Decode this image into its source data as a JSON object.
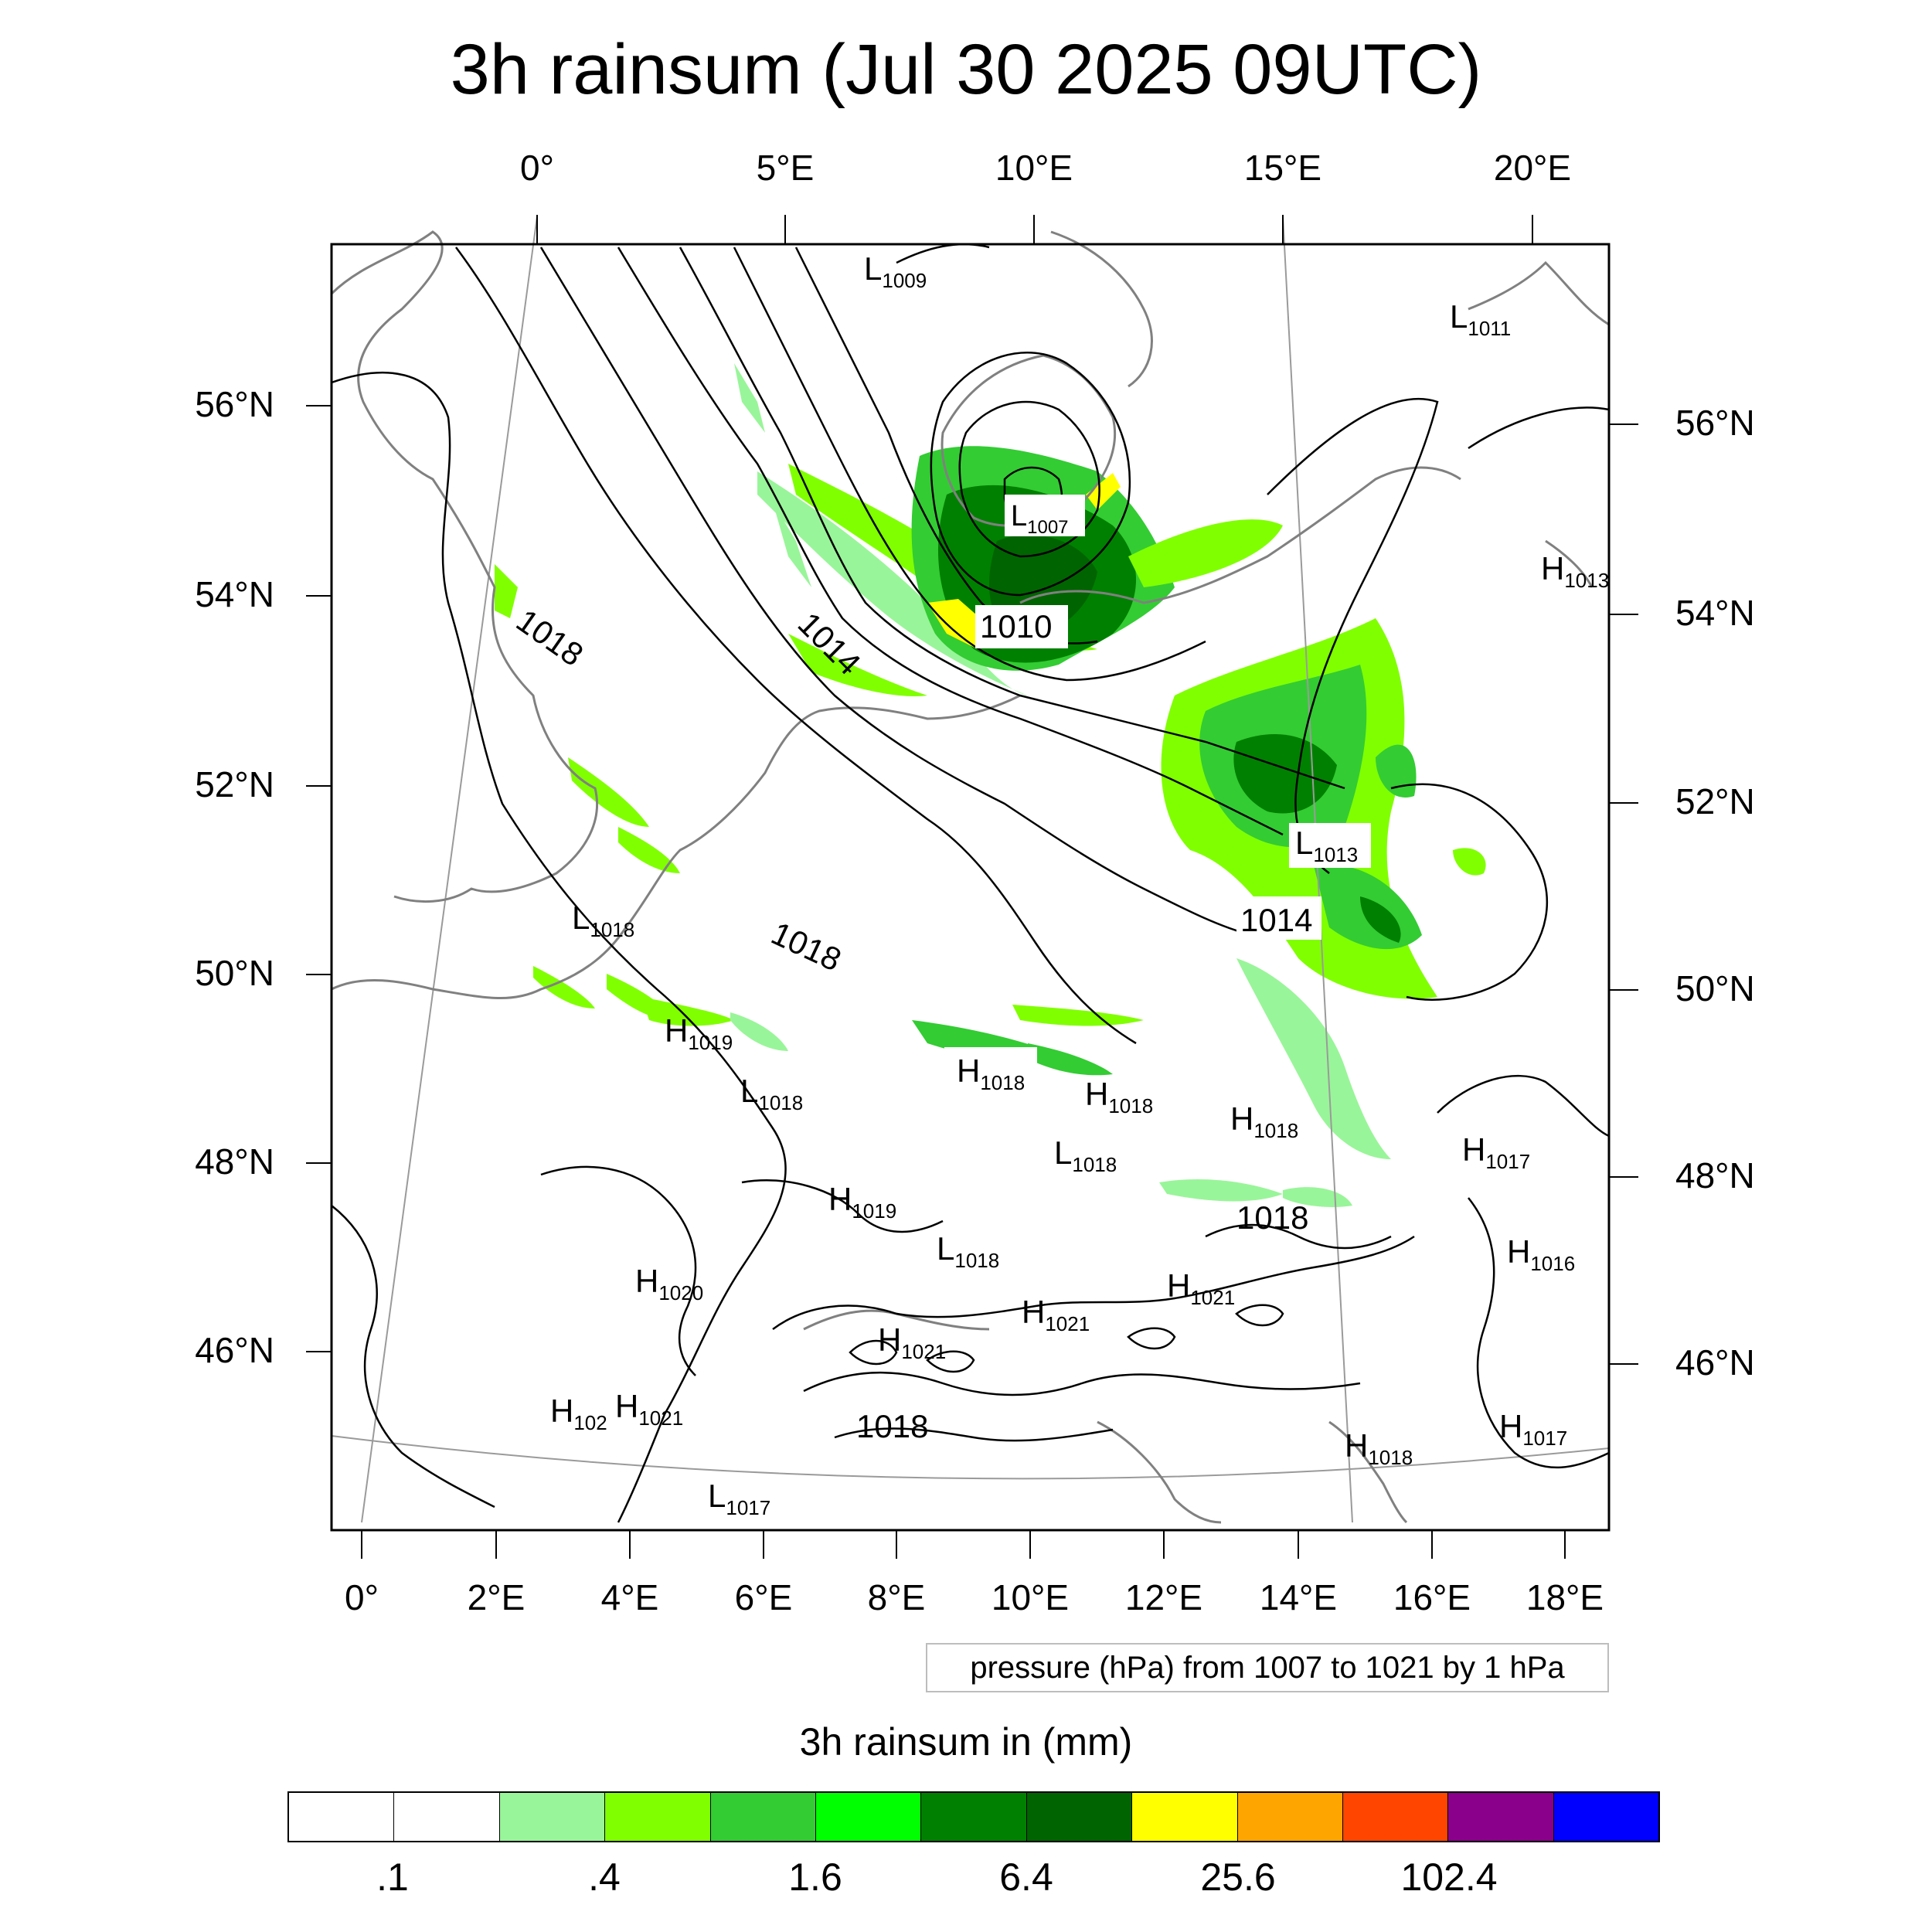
{
  "title": "3h rainsum (Jul 30 2025 09UTC)",
  "axes": {
    "top_lon_ticks": [
      "0°",
      "5°E",
      "10°E",
      "15°E",
      "20°E"
    ],
    "left_lat_ticks": [
      "56°N",
      "54°N",
      "52°N",
      "50°N",
      "48°N",
      "46°N"
    ],
    "right_lat_ticks": [
      "56°N",
      "54°N",
      "52°N",
      "50°N",
      "48°N",
      "46°N"
    ],
    "bottom_lon_ticks": [
      "0°",
      "2°E",
      "4°E",
      "6°E",
      "8°E",
      "10°E",
      "12°E",
      "14°E",
      "16°E",
      "18°E"
    ]
  },
  "pressure_note": "pressure (hPa) from 1007 to 1021 by 1 hPa",
  "colorbar": {
    "title": "3h rainsum in (mm)",
    "colors": [
      "#ffffff",
      "#ffffff",
      "#99f599",
      "#80ff00",
      "#33cc33",
      "#00ff00",
      "#008000",
      "#006400",
      "#ffff00",
      "#ffa500",
      "#ff4500",
      "#8b008b",
      "#0000ff"
    ],
    "labels": [
      ".1",
      ".4",
      "1.6",
      "6.4",
      "25.6",
      "102.4"
    ]
  },
  "isobar_labels": [
    "1018",
    "1014",
    "1010",
    "1018",
    "1014",
    "1018",
    "1018"
  ],
  "centers": [
    {
      "kind": "L",
      "value": "1009"
    },
    {
      "kind": "L",
      "value": "1011"
    },
    {
      "kind": "L",
      "value": "1007"
    },
    {
      "kind": "H",
      "value": "1013"
    },
    {
      "kind": "L",
      "value": "1013"
    },
    {
      "kind": "L",
      "value": "1018"
    },
    {
      "kind": "H",
      "value": "1019"
    },
    {
      "kind": "L",
      "value": "1018"
    },
    {
      "kind": "H",
      "value": "1018"
    },
    {
      "kind": "H",
      "value": "1018"
    },
    {
      "kind": "H",
      "value": "1018"
    },
    {
      "kind": "L",
      "value": "1018"
    },
    {
      "kind": "H",
      "value": "1017"
    },
    {
      "kind": "H",
      "value": "1019"
    },
    {
      "kind": "L",
      "value": "1018"
    },
    {
      "kind": "H",
      "value": "1020"
    },
    {
      "kind": "H",
      "value": "1021"
    },
    {
      "kind": "H",
      "value": "1021"
    },
    {
      "kind": "H",
      "value": "1021"
    },
    {
      "kind": "H",
      "value": "1016"
    },
    {
      "kind": "H",
      "value": "1021"
    },
    {
      "kind": "H",
      "value": "102"
    },
    {
      "kind": "H",
      "value": "1017"
    },
    {
      "kind": "H",
      "value": "1018"
    },
    {
      "kind": "L",
      "value": "1017"
    }
  ]
}
